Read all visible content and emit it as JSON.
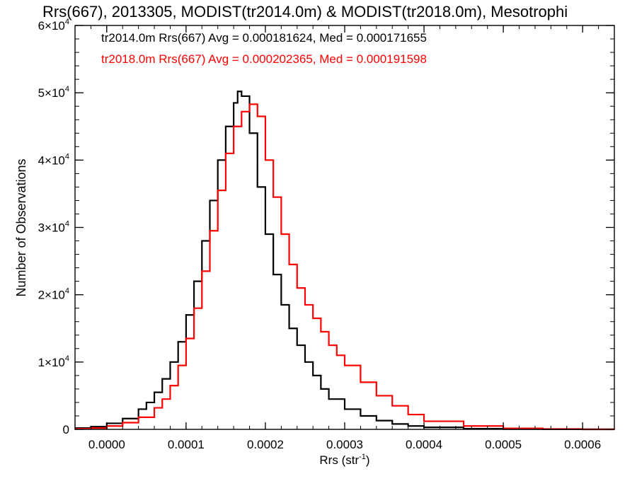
{
  "chart_data": {
    "type": "line",
    "title": "Rrs(667), 2013305, MODIST(tr2014.0m) & MODIST(tr2018.0m), Mesotrophi",
    "xlabel": "Rrs (str",
    "xlabel_sup": "-1",
    "xlabel_close": ")",
    "ylabel": "Number of Observations",
    "xlim": [
      -4e-05,
      0.00064
    ],
    "ylim": [
      0,
      60000
    ],
    "x_ticks": [
      0.0,
      0.0001,
      0.0002,
      0.0003,
      0.0004,
      0.0005,
      0.0006
    ],
    "x_tick_labels": [
      "0.0000",
      "0.0001",
      "0.0002",
      "0.0003",
      "0.0004",
      "0.0005",
      "0.0006"
    ],
    "y_ticks": [
      0,
      10000,
      20000,
      30000,
      40000,
      50000,
      60000
    ],
    "y_tick_labels": [
      {
        "mantissa": "0",
        "exp": ""
      },
      {
        "mantissa": "1×10",
        "exp": "4"
      },
      {
        "mantissa": "2×10",
        "exp": "4"
      },
      {
        "mantissa": "3×10",
        "exp": "4"
      },
      {
        "mantissa": "4×10",
        "exp": "4"
      },
      {
        "mantissa": "5×10",
        "exp": "4"
      },
      {
        "mantissa": "6×10",
        "exp": "4"
      }
    ],
    "grid": false,
    "step_style": "histogram",
    "annotations": [
      {
        "text": "tr2014.0m Rrs(667) Avg = 0.000181624, Med = 0.000171655",
        "color": "#000000"
      },
      {
        "text": "tr2018.0m Rrs(667) Avg = 0.000202365, Med = 0.000191598",
        "color": "#ff0000"
      }
    ],
    "series": [
      {
        "color": "#000000",
        "x": [
          -4e-05,
          -2e-05,
          0.0,
          2e-05,
          4e-05,
          5e-05,
          6e-05,
          7e-05,
          8e-05,
          9e-05,
          0.0001,
          0.00011,
          0.00012,
          0.00013,
          0.00014,
          0.00015,
          0.00016,
          0.000165,
          0.00017,
          0.00018,
          0.00019,
          0.0002,
          0.00021,
          0.00022,
          0.00023,
          0.00024,
          0.00025,
          0.00026,
          0.00027,
          0.00028,
          0.0003,
          0.00032,
          0.00034,
          0.00036,
          0.00038,
          0.0004,
          0.00045,
          0.0005,
          0.00055,
          0.0006,
          0.00064
        ],
        "y": [
          200,
          400,
          900,
          1600,
          3000,
          4000,
          5500,
          7500,
          10000,
          13000,
          17000,
          22000,
          28000,
          34000,
          40000,
          45000,
          48500,
          50200,
          49500,
          44000,
          36000,
          29000,
          23000,
          18500,
          15000,
          12500,
          10000,
          8000,
          6000,
          4500,
          3000,
          2000,
          1300,
          800,
          500,
          300,
          100,
          30,
          10,
          0,
          0
        ]
      },
      {
        "color": "#ff0000",
        "x": [
          -4e-05,
          -2e-05,
          0.0,
          2e-05,
          4e-05,
          6e-05,
          7e-05,
          8e-05,
          9e-05,
          0.0001,
          0.00011,
          0.00012,
          0.00013,
          0.00014,
          0.00015,
          0.00016,
          0.00017,
          0.00018,
          0.00019,
          0.0002,
          0.00021,
          0.00022,
          0.00023,
          0.00024,
          0.00025,
          0.00026,
          0.00027,
          0.00028,
          0.00029,
          0.0003,
          0.00032,
          0.00034,
          0.00036,
          0.00038,
          0.0004,
          0.00045,
          0.0005,
          0.00055,
          0.0006,
          0.00064
        ],
        "y": [
          100,
          200,
          500,
          1000,
          1800,
          3200,
          4500,
          6500,
          9500,
          13500,
          18000,
          23500,
          29500,
          35500,
          41000,
          45000,
          47200,
          48300,
          46500,
          40000,
          34500,
          29000,
          24500,
          21000,
          18500,
          16500,
          14500,
          12500,
          11000,
          9500,
          7000,
          5000,
          3500,
          2200,
          1200,
          500,
          150,
          50,
          10,
          0
        ]
      }
    ]
  }
}
